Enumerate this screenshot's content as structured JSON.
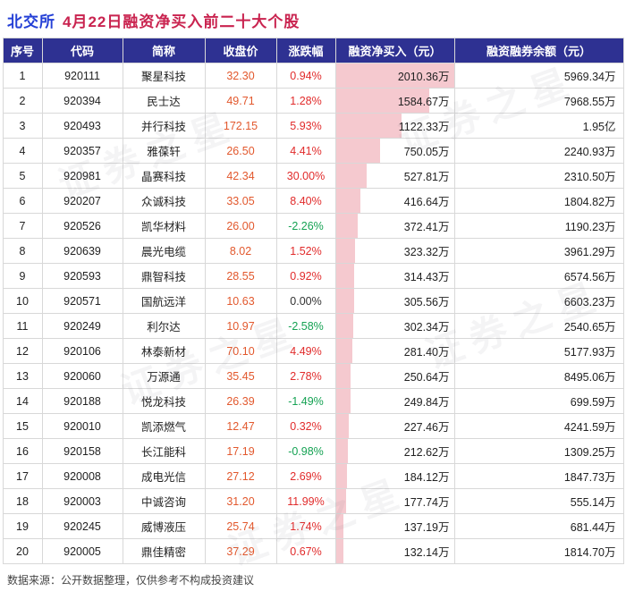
{
  "header": {
    "exchange": "北交所",
    "title": "4月22日融资净买入前二十大个股"
  },
  "footer": {
    "source_note": "数据来源：公开数据整理，仅供参考不构成投资建议"
  },
  "watermark": {
    "text": "证券之星"
  },
  "colors": {
    "header_bg": "#2e3192",
    "header_text": "#ffffff",
    "title_blue": "#2440d6",
    "title_red": "#c9234f",
    "up": "#e12b2b",
    "down": "#15a253",
    "flat": "#333333",
    "close_price": "#e2582d",
    "bar": "#f5c9cf",
    "grid": "#d8d8d8"
  },
  "chart_data": {
    "type": "table",
    "title": "北交所 4月22日融资净买入前二十大个股",
    "columns": [
      "序号",
      "代码",
      "简称",
      "收盘价",
      "涨跌幅",
      "融资净买入（元）",
      "融资融券余额（元）"
    ],
    "bar_overlay": {
      "column": "融资净买入（元）",
      "max_wan": 2010.36
    },
    "rows": [
      {
        "no": 1,
        "code": "920111",
        "name": "聚星科技",
        "close": "32.30",
        "change": "0.94%",
        "net_buy": "2010.36万",
        "net_buy_wan": 2010.36,
        "balance": "5969.34万"
      },
      {
        "no": 2,
        "code": "920394",
        "name": "民士达",
        "close": "49.71",
        "change": "1.28%",
        "net_buy": "1584.67万",
        "net_buy_wan": 1584.67,
        "balance": "7968.55万"
      },
      {
        "no": 3,
        "code": "920493",
        "name": "并行科技",
        "close": "172.15",
        "change": "5.93%",
        "net_buy": "1122.33万",
        "net_buy_wan": 1122.33,
        "balance": "1.95亿"
      },
      {
        "no": 4,
        "code": "920357",
        "name": "雅葆轩",
        "close": "26.50",
        "change": "4.41%",
        "net_buy": "750.05万",
        "net_buy_wan": 750.05,
        "balance": "2240.93万"
      },
      {
        "no": 5,
        "code": "920981",
        "name": "晶赛科技",
        "close": "42.34",
        "change": "30.00%",
        "net_buy": "527.81万",
        "net_buy_wan": 527.81,
        "balance": "2310.50万"
      },
      {
        "no": 6,
        "code": "920207",
        "name": "众诚科技",
        "close": "33.05",
        "change": "8.40%",
        "net_buy": "416.64万",
        "net_buy_wan": 416.64,
        "balance": "1804.82万"
      },
      {
        "no": 7,
        "code": "920526",
        "name": "凯华材料",
        "close": "26.00",
        "change": "-2.26%",
        "net_buy": "372.41万",
        "net_buy_wan": 372.41,
        "balance": "1190.23万"
      },
      {
        "no": 8,
        "code": "920639",
        "name": "晨光电缆",
        "close": "8.02",
        "change": "1.52%",
        "net_buy": "323.32万",
        "net_buy_wan": 323.32,
        "balance": "3961.29万"
      },
      {
        "no": 9,
        "code": "920593",
        "name": "鼎智科技",
        "close": "28.55",
        "change": "0.92%",
        "net_buy": "314.43万",
        "net_buy_wan": 314.43,
        "balance": "6574.56万"
      },
      {
        "no": 10,
        "code": "920571",
        "name": "国航远洋",
        "close": "10.63",
        "change": "0.00%",
        "net_buy": "305.56万",
        "net_buy_wan": 305.56,
        "balance": "6603.23万"
      },
      {
        "no": 11,
        "code": "920249",
        "name": "利尔达",
        "close": "10.97",
        "change": "-2.58%",
        "net_buy": "302.34万",
        "net_buy_wan": 302.34,
        "balance": "2540.65万"
      },
      {
        "no": 12,
        "code": "920106",
        "name": "林泰新材",
        "close": "70.10",
        "change": "4.49%",
        "net_buy": "281.40万",
        "net_buy_wan": 281.4,
        "balance": "5177.93万"
      },
      {
        "no": 13,
        "code": "920060",
        "name": "万源通",
        "close": "35.45",
        "change": "2.78%",
        "net_buy": "250.64万",
        "net_buy_wan": 250.64,
        "balance": "8495.06万"
      },
      {
        "no": 14,
        "code": "920188",
        "name": "悦龙科技",
        "close": "26.39",
        "change": "-1.49%",
        "net_buy": "249.84万",
        "net_buy_wan": 249.84,
        "balance": "699.59万"
      },
      {
        "no": 15,
        "code": "920010",
        "name": "凯添燃气",
        "close": "12.47",
        "change": "0.32%",
        "net_buy": "227.46万",
        "net_buy_wan": 227.46,
        "balance": "4241.59万"
      },
      {
        "no": 16,
        "code": "920158",
        "name": "长江能科",
        "close": "17.19",
        "change": "-0.98%",
        "net_buy": "212.62万",
        "net_buy_wan": 212.62,
        "balance": "1309.25万"
      },
      {
        "no": 17,
        "code": "920008",
        "name": "成电光信",
        "close": "27.12",
        "change": "2.69%",
        "net_buy": "184.12万",
        "net_buy_wan": 184.12,
        "balance": "1847.73万"
      },
      {
        "no": 18,
        "code": "920003",
        "name": "中诚咨询",
        "close": "31.20",
        "change": "11.99%",
        "net_buy": "177.74万",
        "net_buy_wan": 177.74,
        "balance": "555.14万"
      },
      {
        "no": 19,
        "code": "920245",
        "name": "威博液压",
        "close": "25.74",
        "change": "1.74%",
        "net_buy": "137.19万",
        "net_buy_wan": 137.19,
        "balance": "681.44万"
      },
      {
        "no": 20,
        "code": "920005",
        "name": "鼎佳精密",
        "close": "37.29",
        "change": "0.67%",
        "net_buy": "132.14万",
        "net_buy_wan": 132.14,
        "balance": "1814.70万"
      }
    ]
  }
}
